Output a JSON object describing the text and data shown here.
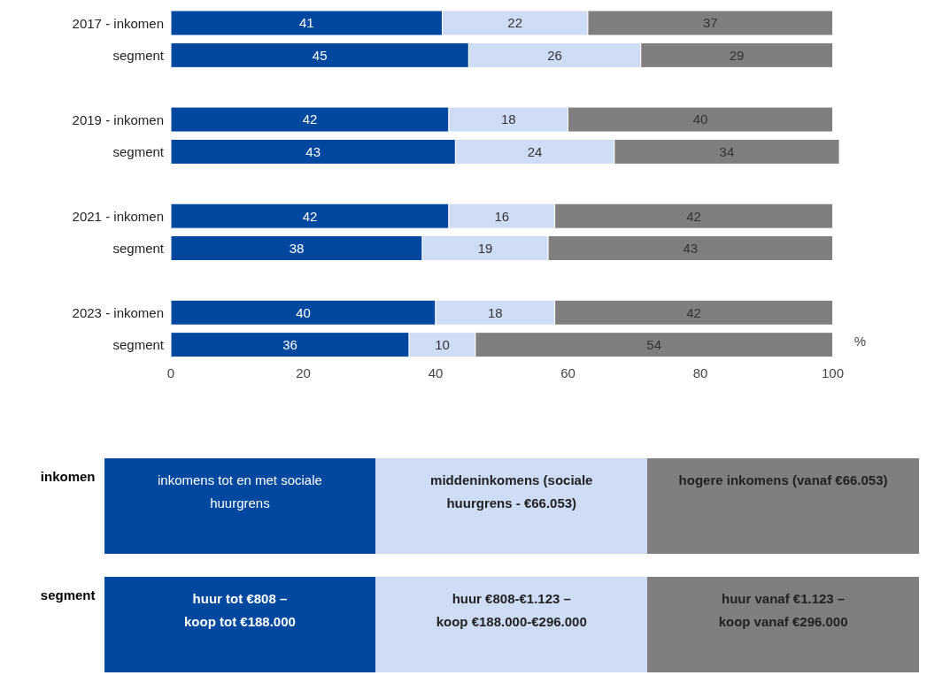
{
  "chart_data": {
    "type": "bar",
    "orientation": "horizontal",
    "stacked": true,
    "data_labels": true,
    "grid": false,
    "xlabel": "%",
    "categories": [
      "2017 - inkomen",
      "segment",
      null,
      "2019 - inkomen",
      "segment",
      null,
      "2021 - inkomen",
      "segment",
      null,
      "2023 - inkomen",
      "segment"
    ],
    "series": [
      {
        "color": "#0047a0",
        "values": [
          41,
          45,
          null,
          42,
          43,
          null,
          42,
          38,
          null,
          40,
          36
        ]
      },
      {
        "color": "#cfdcf5",
        "values": [
          22,
          26,
          null,
          18,
          24,
          null,
          16,
          19,
          null,
          18,
          10
        ]
      },
      {
        "color": "#7f7f7f",
        "values": [
          37,
          29,
          null,
          40,
          34,
          null,
          42,
          43,
          null,
          42,
          54
        ]
      }
    ],
    "xlim": [
      0,
      101
    ],
    "xticks": [
      0,
      20,
      40,
      60,
      80,
      100
    ],
    "annotations": [
      "inkomen",
      "inkomens tot en met sociale huurgrens",
      "middeninkomens (sociale huurgrens - €66.053)",
      "hogere inkomens (vanaf €66.053)",
      "segment",
      "huur tot €808 –\nkoop tot €188.000",
      "huur €808-€1.123 –\nkoop €188.000-€296.000",
      "huur vanaf €1.123 –\nkoop vanaf €296.000"
    ]
  }
}
